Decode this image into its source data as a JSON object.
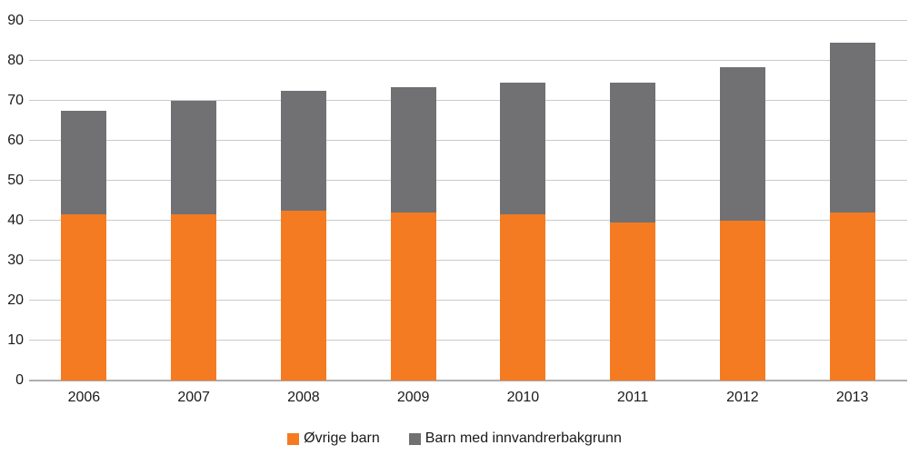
{
  "chart_data": {
    "type": "bar",
    "stacked": true,
    "title": "",
    "xlabel": "",
    "ylabel": "",
    "categories": [
      "2006",
      "2007",
      "2008",
      "2009",
      "2010",
      "2011",
      "2012",
      "2013"
    ],
    "series": [
      {
        "name": "Øvrige barn",
        "color": "#f47b21",
        "values": [
          41.5,
          41.5,
          42.5,
          42,
          41.5,
          39.5,
          40,
          42
        ]
      },
      {
        "name": "Barn med innvandrerbakgrunn",
        "color": "#717174",
        "values": [
          26,
          28.5,
          30,
          31.5,
          33,
          35,
          38.5,
          42.5
        ]
      }
    ],
    "totals": [
      67.5,
      70,
      72.5,
      73.5,
      74.5,
      74.5,
      78.5,
      84.5
    ],
    "ylim": [
      0,
      90
    ],
    "ytick_step": 10,
    "yticks": [
      "0",
      "10",
      "20",
      "30",
      "40",
      "50",
      "60",
      "70",
      "80",
      "90"
    ],
    "grid": true,
    "legend_position": "bottom-center"
  },
  "colors": {
    "background": "#ffffff",
    "gridline": "#c9cacc",
    "axis_line": "#aeafb1",
    "text": "#1a1a1a",
    "series_orange": "#f47b21",
    "series_gray": "#717174"
  }
}
